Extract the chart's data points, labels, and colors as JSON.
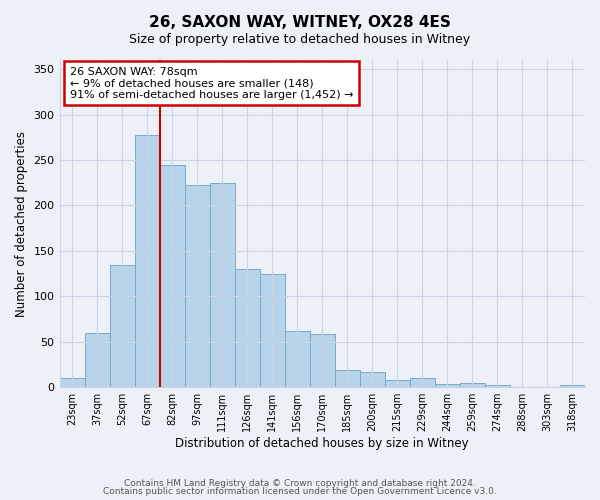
{
  "title": "26, SAXON WAY, WITNEY, OX28 4ES",
  "subtitle": "Size of property relative to detached houses in Witney",
  "xlabel": "Distribution of detached houses by size in Witney",
  "ylabel": "Number of detached properties",
  "footer_line1": "Contains HM Land Registry data © Crown copyright and database right 2024.",
  "footer_line2": "Contains public sector information licensed under the Open Government Licence v3.0.",
  "categories": [
    "23sqm",
    "37sqm",
    "52sqm",
    "67sqm",
    "82sqm",
    "97sqm",
    "111sqm",
    "126sqm",
    "141sqm",
    "156sqm",
    "170sqm",
    "185sqm",
    "200sqm",
    "215sqm",
    "229sqm",
    "244sqm",
    "259sqm",
    "274sqm",
    "288sqm",
    "303sqm",
    "318sqm"
  ],
  "values": [
    10,
    60,
    135,
    277,
    245,
    222,
    225,
    130,
    125,
    62,
    59,
    19,
    17,
    8,
    10,
    4,
    5,
    2,
    0,
    0,
    2
  ],
  "bar_color": "#b8d4ea",
  "bar_edge_color": "#7aaac8",
  "highlight_bar_index": 3,
  "highlight_line_color": "#cc0000",
  "ylim": [
    0,
    360
  ],
  "yticks": [
    0,
    50,
    100,
    150,
    200,
    250,
    300,
    350
  ],
  "annotation_title": "26 SAXON WAY: 78sqm",
  "annotation_line1": "← 9% of detached houses are smaller (148)",
  "annotation_line2": "91% of semi-detached houses are larger (1,452) →",
  "annotation_box_color": "#ffffff",
  "annotation_border_color": "#cc0000",
  "bg_color": "#edf1f7"
}
